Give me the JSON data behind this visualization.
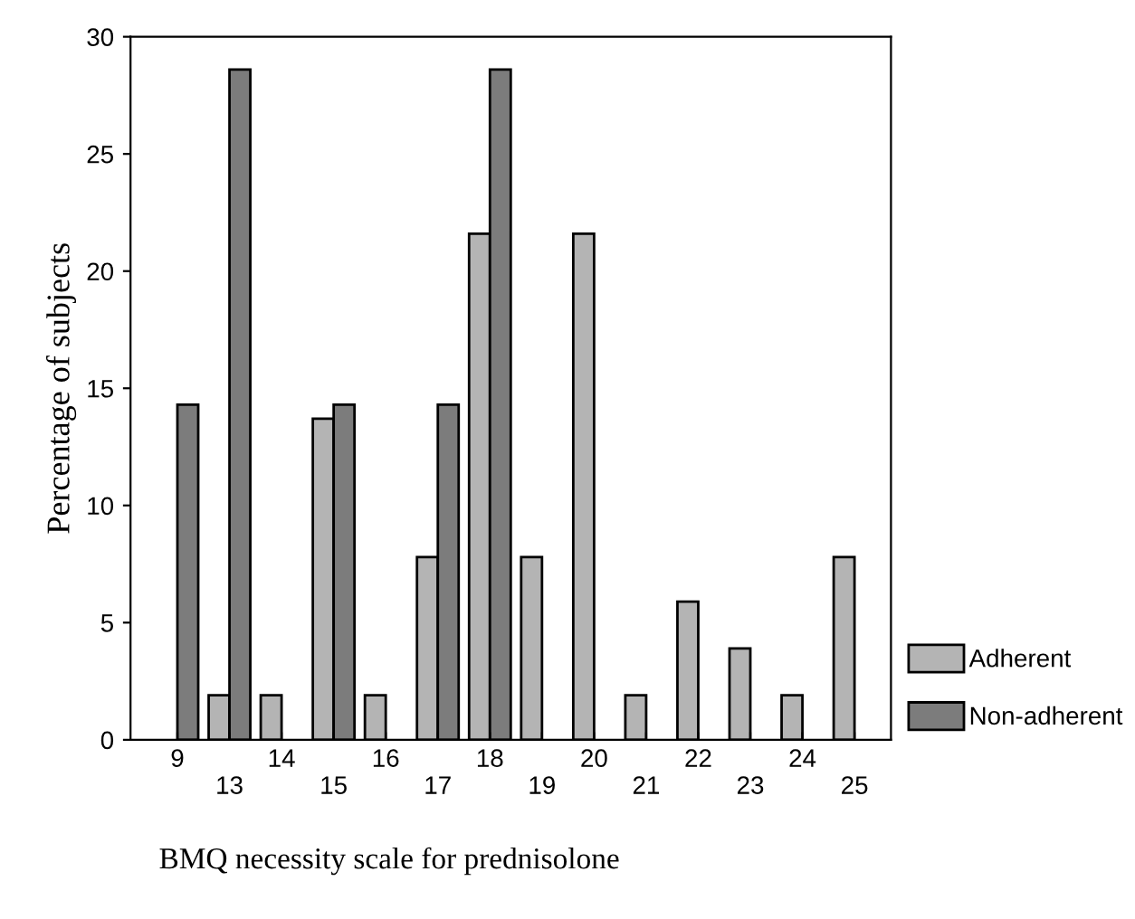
{
  "chart_data": {
    "type": "bar",
    "xlabel": "BMQ necessity scale for prednisolone",
    "ylabel": "Percentage of subjects",
    "categories": [
      "9",
      "13",
      "14",
      "15",
      "16",
      "17",
      "18",
      "19",
      "20",
      "21",
      "22",
      "23",
      "24",
      "25"
    ],
    "series": [
      {
        "name": "Adherent",
        "color": "#b4b4b4",
        "values": [
          null,
          1.9,
          1.9,
          13.7,
          1.9,
          7.8,
          21.6,
          7.8,
          21.6,
          1.9,
          5.9,
          3.9,
          1.9,
          7.8
        ]
      },
      {
        "name": "Non-adherent",
        "color": "#7c7c7c",
        "values": [
          14.3,
          28.6,
          null,
          14.3,
          null,
          14.3,
          28.6,
          null,
          null,
          null,
          null,
          null,
          null,
          null
        ]
      }
    ],
    "ylim": [
      0,
      30
    ],
    "yticks": [
      0,
      5,
      10,
      15,
      20,
      25,
      30
    ],
    "grid": false,
    "legend": "right"
  }
}
